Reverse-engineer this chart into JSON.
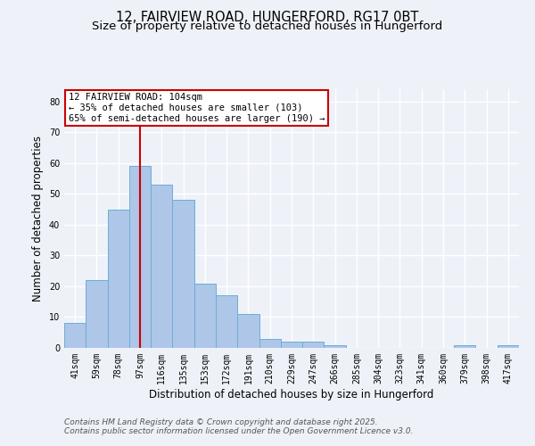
{
  "title_line1": "12, FAIRVIEW ROAD, HUNGERFORD, RG17 0BT",
  "title_line2": "Size of property relative to detached houses in Hungerford",
  "xlabel": "Distribution of detached houses by size in Hungerford",
  "ylabel": "Number of detached properties",
  "bin_labels": [
    "41sqm",
    "59sqm",
    "78sqm",
    "97sqm",
    "116sqm",
    "135sqm",
    "153sqm",
    "172sqm",
    "191sqm",
    "210sqm",
    "229sqm",
    "247sqm",
    "266sqm",
    "285sqm",
    "304sqm",
    "323sqm",
    "341sqm",
    "360sqm",
    "379sqm",
    "398sqm",
    "417sqm"
  ],
  "bar_heights": [
    8,
    22,
    45,
    59,
    53,
    48,
    21,
    17,
    11,
    3,
    2,
    2,
    1,
    0,
    0,
    0,
    0,
    0,
    1,
    0,
    1
  ],
  "bar_color": "#aec6e8",
  "bar_edge_color": "#6aaed6",
  "vline_x_index": 3,
  "vline_color": "#cc0000",
  "annotation_text": "12 FAIRVIEW ROAD: 104sqm\n← 35% of detached houses are smaller (103)\n65% of semi-detached houses are larger (190) →",
  "annotation_box_color": "#ffffff",
  "annotation_box_edge_color": "#cc0000",
  "ylim": [
    0,
    84
  ],
  "yticks": [
    0,
    10,
    20,
    30,
    40,
    50,
    60,
    70,
    80
  ],
  "footer_line1": "Contains HM Land Registry data © Crown copyright and database right 2025.",
  "footer_line2": "Contains public sector information licensed under the Open Government Licence v3.0.",
  "bg_color": "#eef2f8",
  "plot_bg_color": "#eef2f8",
  "grid_color": "#ffffff",
  "title_fontsize": 10.5,
  "subtitle_fontsize": 9.5,
  "annotation_fontsize": 7.5,
  "footer_fontsize": 6.5,
  "axis_label_fontsize": 8.5,
  "tick_fontsize": 7
}
